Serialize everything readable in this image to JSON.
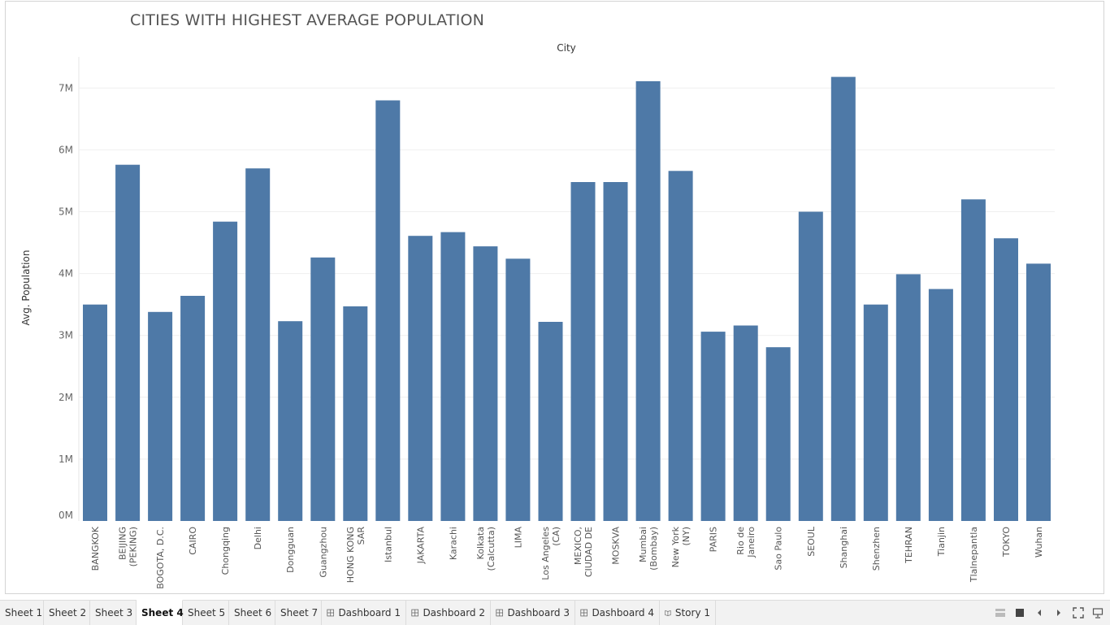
{
  "title": "CITIES WITH HIGHEST AVERAGE POPULATION",
  "chart_data": {
    "type": "bar",
    "title": "CITIES WITH HIGHEST AVERAGE POPULATION",
    "xlabel": "City",
    "ylabel": "Avg. Population",
    "ylim": [
      0,
      7500000
    ],
    "yticks": [
      "0M",
      "1M",
      "2M",
      "3M",
      "4M",
      "5M",
      "6M",
      "7M"
    ],
    "grid": true,
    "bar_color": "#4e79a7",
    "categories": [
      "BANGKOK",
      "BEIJING (PEKING)",
      "BOGOTA, D.C.",
      "CAIRO",
      "Chongqing",
      "Delhi",
      "Dongguan",
      "Guangzhou",
      "HONG KONG SAR",
      "Istanbul",
      "JAKARTA",
      "Karachi",
      "Kolkata (Calcutta)",
      "LIMA",
      "Los Angeles (CA)",
      "MEXICO, CIUDAD DE",
      "MOSKVA",
      "Mumbai (Bombay)",
      "New York (NY)",
      "PARIS",
      "Rio de Janeiro",
      "Sao Paulo",
      "SEOUL",
      "Shanghai",
      "Shenzhen",
      "TEHRAN",
      "Tianjin",
      "Tlalnepantla",
      "TOKYO",
      "Wuhan"
    ],
    "category_lines": [
      [
        "BANGKOK"
      ],
      [
        "BEIJING",
        "(PEKING)"
      ],
      [
        "BOGOTA, D.C."
      ],
      [
        "CAIRO"
      ],
      [
        "Chongqing"
      ],
      [
        "Delhi"
      ],
      [
        "Dongguan"
      ],
      [
        "Guangzhou"
      ],
      [
        "HONG KONG",
        "SAR"
      ],
      [
        "Istanbul"
      ],
      [
        "JAKARTA"
      ],
      [
        "Karachi"
      ],
      [
        "Kolkata",
        "(Calcutta)"
      ],
      [
        "LIMA"
      ],
      [
        "Los Angeles",
        "(CA)"
      ],
      [
        "MEXICO,",
        "CIUDAD DE"
      ],
      [
        "MOSKVA"
      ],
      [
        "Mumbai",
        "(Bombay)"
      ],
      [
        "New York",
        "(NY)"
      ],
      [
        "PARIS"
      ],
      [
        "Rio de",
        "Janeiro"
      ],
      [
        "Sao Paulo"
      ],
      [
        "SEOUL"
      ],
      [
        "Shanghai"
      ],
      [
        "Shenzhen"
      ],
      [
        "TEHRAN"
      ],
      [
        "Tianjin"
      ],
      [
        "Tlalnepantla"
      ],
      [
        "TOKYO"
      ],
      [
        "Wuhan"
      ]
    ],
    "values": [
      3500000,
      5760000,
      3380000,
      3640000,
      4840000,
      5700000,
      3230000,
      4260000,
      3470000,
      6800000,
      4610000,
      4670000,
      4440000,
      4240000,
      3220000,
      5480000,
      5480000,
      7110000,
      5660000,
      3060000,
      3160000,
      2810000,
      5000000,
      7180000,
      3500000,
      3990000,
      3750000,
      5200000,
      4570000,
      4160000
    ]
  },
  "tabs": [
    {
      "label": "Sheet 1",
      "icon": "none",
      "active": false
    },
    {
      "label": "Sheet 2",
      "icon": "none",
      "active": false
    },
    {
      "label": "Sheet 3",
      "icon": "none",
      "active": false
    },
    {
      "label": "Sheet 4",
      "icon": "none",
      "active": true
    },
    {
      "label": "Sheet 5",
      "icon": "none",
      "active": false
    },
    {
      "label": "Sheet 6",
      "icon": "none",
      "active": false
    },
    {
      "label": "Sheet 7",
      "icon": "none",
      "active": false
    },
    {
      "label": "Dashboard 1",
      "icon": "dashboard-icon",
      "active": false
    },
    {
      "label": "Dashboard 2",
      "icon": "dashboard-icon",
      "active": false
    },
    {
      "label": "Dashboard 3",
      "icon": "dashboard-icon",
      "active": false
    },
    {
      "label": "Dashboard 4",
      "icon": "dashboard-icon",
      "active": false
    },
    {
      "label": "Story 1",
      "icon": "story-icon",
      "active": false
    }
  ],
  "controls": [
    "filmstrip-view-icon",
    "tabs-view-icon",
    "previous-sheet-icon",
    "next-sheet-icon",
    "fullscreen-icon",
    "presentation-icon"
  ]
}
